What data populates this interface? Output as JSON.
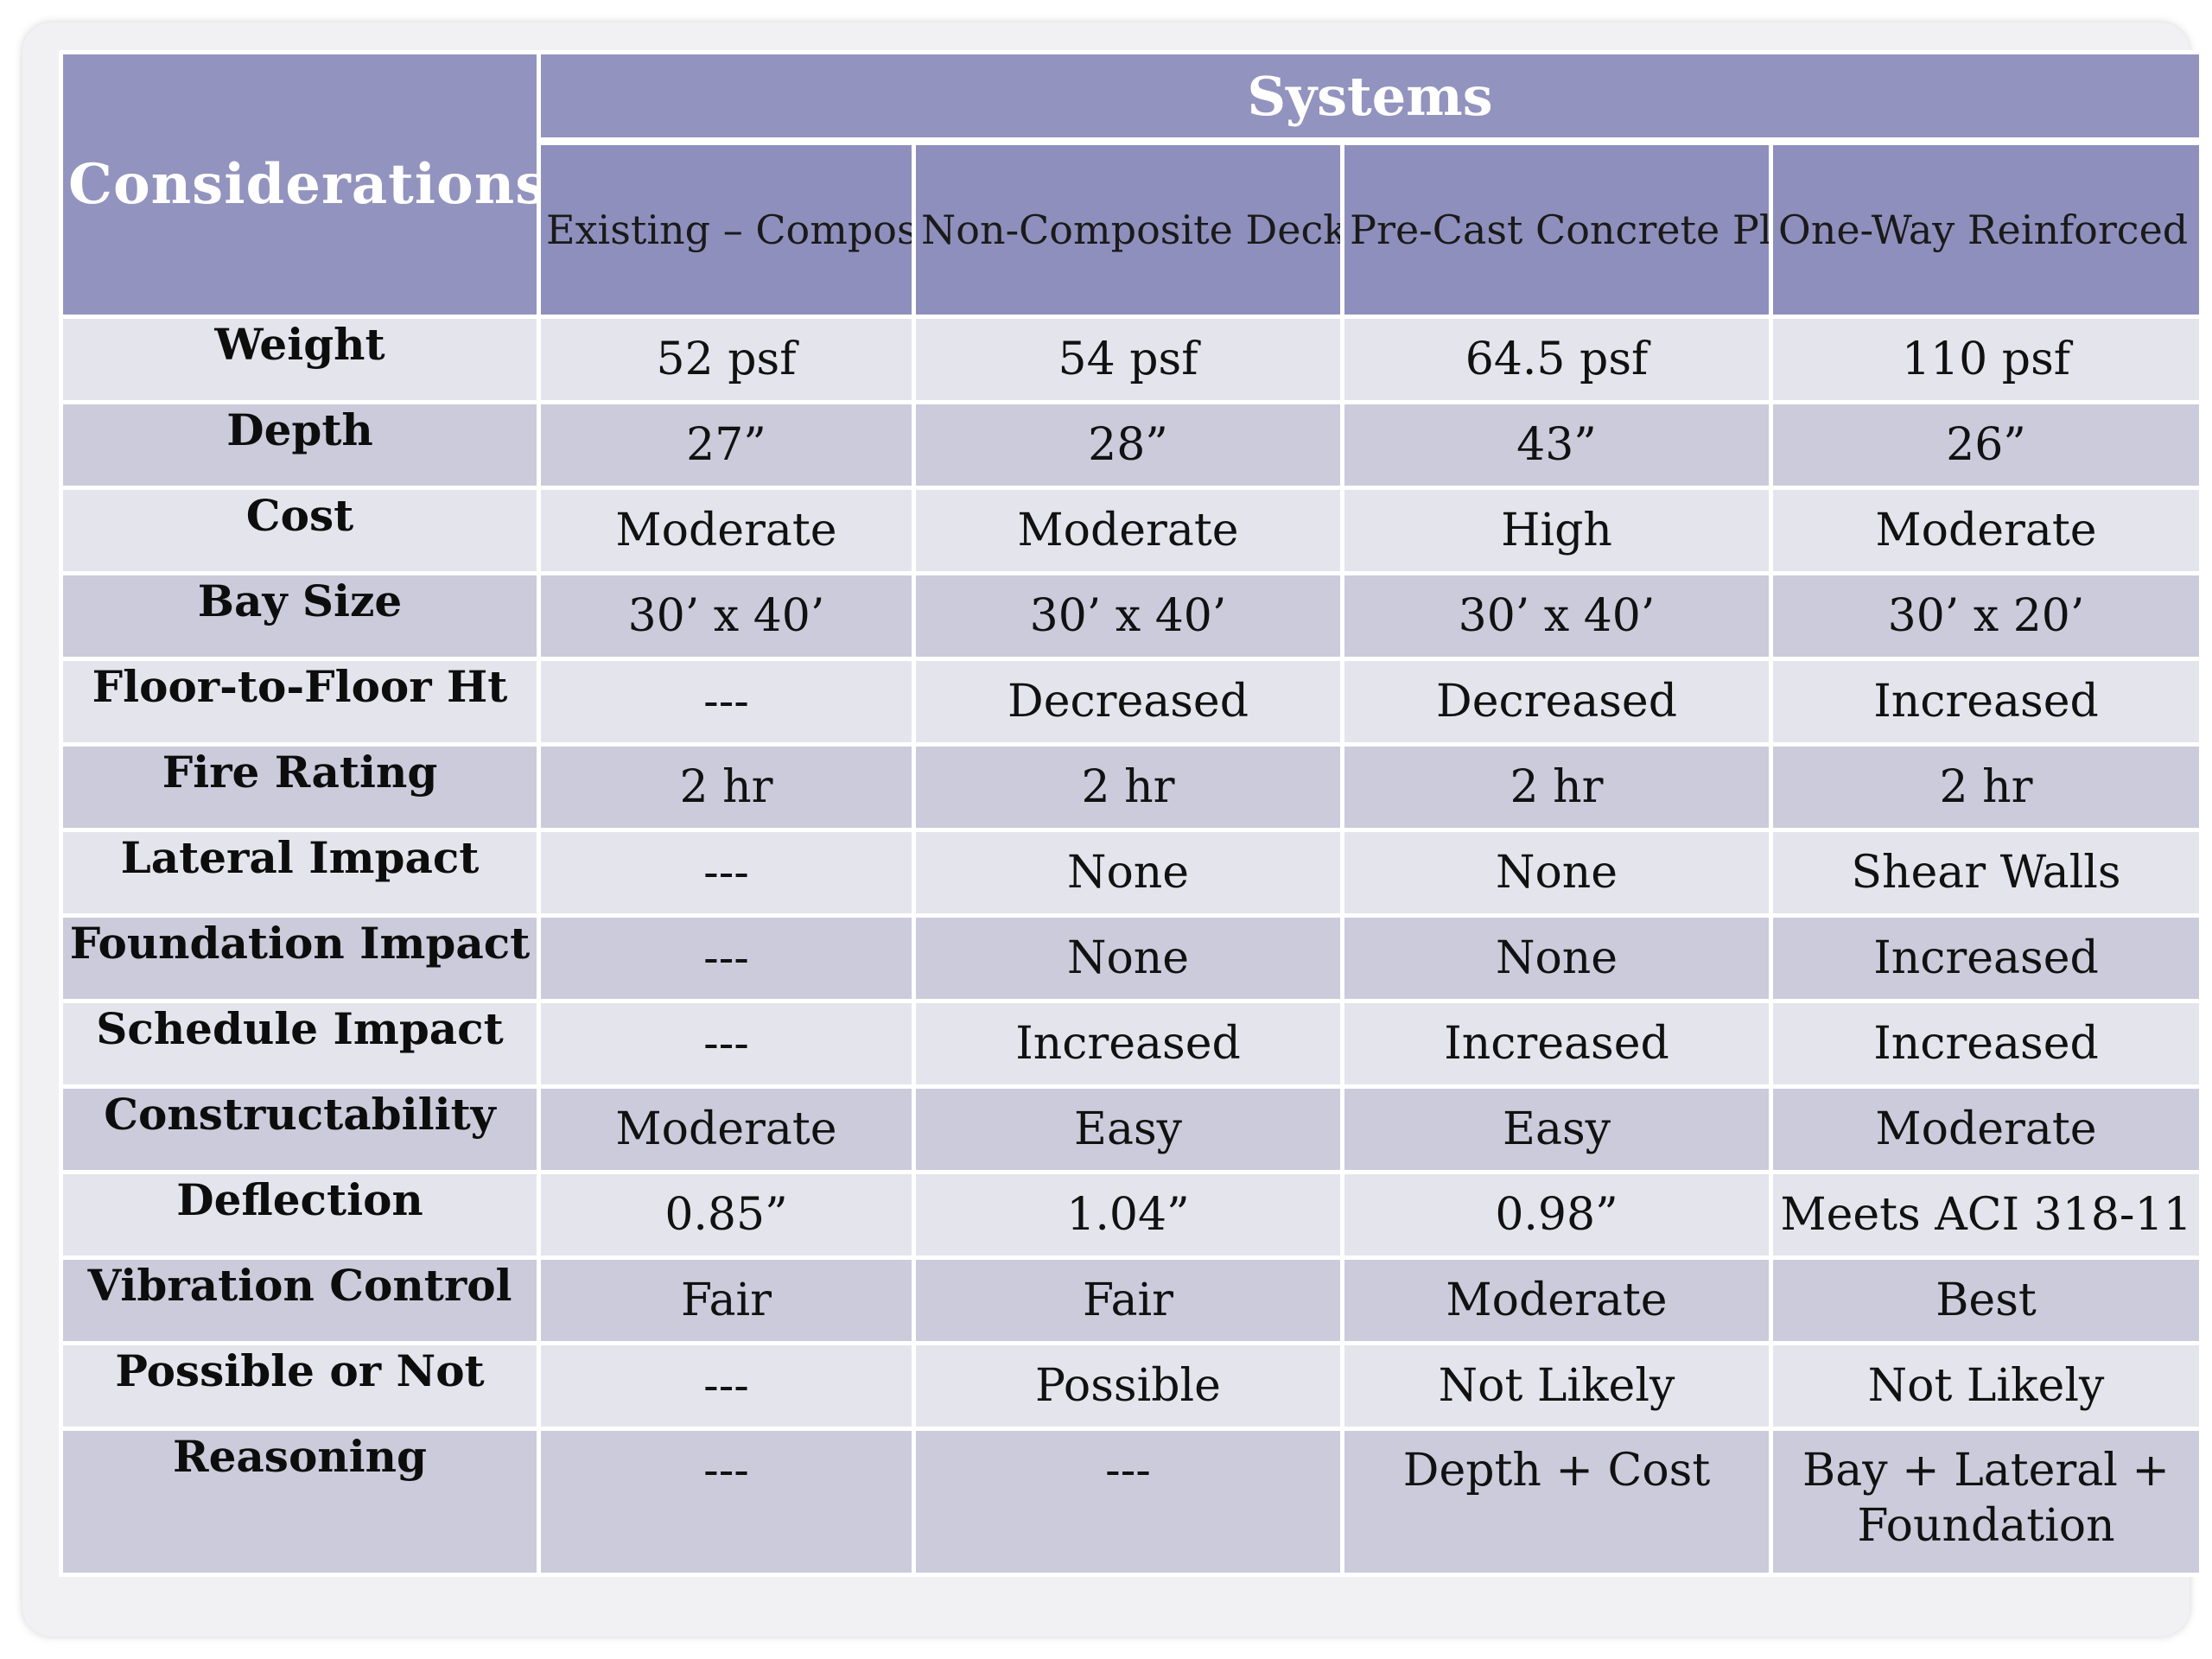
{
  "header": {
    "considerations": "Considerations",
    "systems": "Systems",
    "columns": [
      "Existing – Composite Deck + Beams/Girders",
      "Non-Composite Deck + Bar Joists/Girder",
      "Pre-Cast Concrete Planks on Structural Steel",
      "One-Way Reinforced Slab with Beams"
    ]
  },
  "rows": [
    {
      "label": "Weight",
      "values": [
        "52 psf",
        "54 psf",
        "64.5 psf",
        "110 psf"
      ]
    },
    {
      "label": "Depth",
      "values": [
        "27”",
        "28”",
        "43”",
        "26”"
      ]
    },
    {
      "label": "Cost",
      "values": [
        "Moderate",
        "Moderate",
        "High",
        "Moderate"
      ]
    },
    {
      "label": "Bay Size",
      "values": [
        "30’ x 40’",
        "30’ x 40’",
        "30’ x 40’",
        "30’ x 20’"
      ]
    },
    {
      "label": "Floor-to-Floor Ht",
      "values": [
        "---",
        "Decreased",
        "Decreased",
        "Increased"
      ]
    },
    {
      "label": "Fire Rating",
      "values": [
        "2 hr",
        "2 hr",
        "2 hr",
        "2 hr"
      ]
    },
    {
      "label": "Lateral Impact",
      "values": [
        "---",
        "None",
        "None",
        "Shear Walls"
      ]
    },
    {
      "label": "Foundation Impact",
      "values": [
        "---",
        "None",
        "None",
        "Increased"
      ]
    },
    {
      "label": "Schedule Impact",
      "values": [
        "---",
        "Increased",
        "Increased",
        "Increased"
      ]
    },
    {
      "label": "Constructability",
      "values": [
        "Moderate",
        "Easy",
        "Easy",
        "Moderate"
      ]
    },
    {
      "label": "Deflection",
      "values": [
        "0.85”",
        "1.04”",
        "0.98”",
        "Meets ACI 318-11"
      ]
    },
    {
      "label": "Vibration Control",
      "values": [
        "Fair",
        "Fair",
        "Moderate",
        "Best"
      ]
    },
    {
      "label": "Possible or Not",
      "values": [
        "---",
        "Possible",
        "Not Likely",
        "Not Likely"
      ]
    },
    {
      "label": "Reasoning",
      "values": [
        "---",
        "---",
        "Depth + Cost",
        "Bay + Lateral + Foundation"
      ]
    }
  ]
}
